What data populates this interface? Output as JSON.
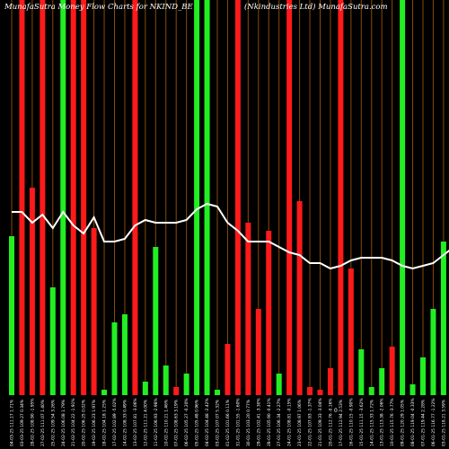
{
  "chart_data": {
    "type": "bar",
    "title_left": "MunafaSutra Money Flow Charts for NKIND_BE",
    "title_right": "(Nkindustries Ltd) MunafaSutra.com",
    "zero_label": "0",
    "colors": {
      "up": "#22ee22",
      "down": "#ff1a1a",
      "line": "#ffffff",
      "grid": "#8a4a0a",
      "background": "#000000"
    },
    "ylim": [
      0,
      100
    ],
    "categories": [
      "04-03-25 111.17 1.71%",
      "03-03-25 109.27 0.34%",
      "28-02-25 108.90 -1.95%",
      "27-02-25 111.07 1.40%",
      "25-02-25 109.54 3.26%",
      "24-02-25 106.08 1.79%",
      "21-02-25 104.22 -1.91%",
      "20-02-25 106.25 0.02%",
      "19-02-25 106.23 1.97%",
      "18-02-25 104.18 1.25%",
      "17-02-25 102.89 -5.02%",
      "14-02-25 108.33 0.49%",
      "13-02-25 107.81 -3.06%",
      "12-02-25 111.21 4.00%",
      "11-02-25 106.93 -2.98%",
      "10-02-25 110.21 1.46%",
      "07-02-25 108.63 3.19%",
      "06-02-25 105.27 -0.20%",
      "05-02-25 105.48 0.96%",
      "04-02-25 104.48 -2.42%",
      "03-02-25 107.07 5.32%",
      "01-02-25 101.66 0.11%",
      "31-01-25 101.55 -1.60%",
      "30-01-25 103.20 0.77%",
      "29-01-25 102.41 -3.30%",
      "28-01-25 105.90 -0.41%",
      "27-01-25 106.34 -2.27%",
      "24-01-25 108.81 -0.15%",
      "23-01-25 108.97 1.06%",
      "22-01-25 107.83 -1.37%",
      "21-01-25 109.33 -3.04%",
      "20-01-25 112.76 -0.16%",
      "17-01-25 112.94 2.53%",
      "16-01-25 110.15 -0.90%",
      "15-01-25 111.15 -3.62%",
      "14-01-25 115.33 1.72%",
      "13-01-25 113.38 -2.06%",
      "10-01-25 115.76 -3.77%",
      "09-01-25 120.29 1.05%",
      "08-01-25 119.04 -0.33%",
      "07-01-25 119.44 2.28%",
      "06-01-25 116.77 -1.22%",
      "03-01-25 118.21 3.59%",
      "02-01-25 114.11 -0.60%"
    ],
    "bars": [
      {
        "value": 59,
        "dir": "up",
        "tall": false
      },
      {
        "value": 100,
        "dir": "down",
        "tall": true
      },
      {
        "value": 77,
        "dir": "down",
        "tall": false
      },
      {
        "value": 100,
        "dir": "down",
        "tall": true
      },
      {
        "value": 40,
        "dir": "up",
        "tall": false
      },
      {
        "value": 100,
        "dir": "up",
        "tall": true
      },
      {
        "value": 100,
        "dir": "down",
        "tall": true
      },
      {
        "value": 100,
        "dir": "down",
        "tall": true
      },
      {
        "value": 62,
        "dir": "down",
        "tall": false
      },
      {
        "value": 2,
        "dir": "up",
        "tall": false
      },
      {
        "value": 27,
        "dir": "up",
        "tall": false
      },
      {
        "value": 30,
        "dir": "up",
        "tall": false
      },
      {
        "value": 100,
        "dir": "down",
        "tall": true
      },
      {
        "value": 5,
        "dir": "up",
        "tall": false
      },
      {
        "value": 55,
        "dir": "up",
        "tall": false
      },
      {
        "value": 11,
        "dir": "up",
        "tall": false
      },
      {
        "value": 3,
        "dir": "down",
        "tall": false
      },
      {
        "value": 8,
        "dir": "up",
        "tall": false
      },
      {
        "value": 100,
        "dir": "up",
        "tall": true
      },
      {
        "value": 100,
        "dir": "up",
        "tall": true
      },
      {
        "value": 2,
        "dir": "up",
        "tall": false
      },
      {
        "value": 19,
        "dir": "down",
        "tall": false
      },
      {
        "value": 100,
        "dir": "down",
        "tall": true
      },
      {
        "value": 64,
        "dir": "down",
        "tall": false
      },
      {
        "value": 32,
        "dir": "down",
        "tall": false
      },
      {
        "value": 61,
        "dir": "down",
        "tall": false
      },
      {
        "value": 8,
        "dir": "up",
        "tall": false
      },
      {
        "value": 100,
        "dir": "down",
        "tall": true
      },
      {
        "value": 72,
        "dir": "down",
        "tall": false
      },
      {
        "value": 3,
        "dir": "down",
        "tall": false
      },
      {
        "value": 2,
        "dir": "down",
        "tall": false
      },
      {
        "value": 10,
        "dir": "down",
        "tall": false
      },
      {
        "value": 100,
        "dir": "down",
        "tall": true
      },
      {
        "value": 47,
        "dir": "down",
        "tall": false
      },
      {
        "value": 17,
        "dir": "up",
        "tall": false
      },
      {
        "value": 3,
        "dir": "up",
        "tall": false
      },
      {
        "value": 10,
        "dir": "up",
        "tall": false
      },
      {
        "value": 18,
        "dir": "down",
        "tall": false
      },
      {
        "value": 100,
        "dir": "up",
        "tall": true
      },
      {
        "value": 4,
        "dir": "up",
        "tall": false
      },
      {
        "value": 14,
        "dir": "up",
        "tall": false
      },
      {
        "value": 32,
        "dir": "up",
        "tall": false
      },
      {
        "value": 57,
        "dir": "up",
        "tall": false
      },
      {
        "value": 0,
        "dir": "up",
        "tall": false
      }
    ],
    "money_flow_line": [
      68,
      68,
      64,
      67,
      62,
      68,
      63,
      60,
      66,
      57,
      57,
      58,
      63,
      65,
      64,
      64,
      64,
      65,
      69,
      71,
      70,
      64,
      61,
      57,
      57,
      57,
      55,
      53,
      52,
      49,
      49,
      47,
      48,
      50,
      51,
      51,
      51,
      50,
      48,
      47,
      48,
      49,
      52,
      55
    ]
  }
}
